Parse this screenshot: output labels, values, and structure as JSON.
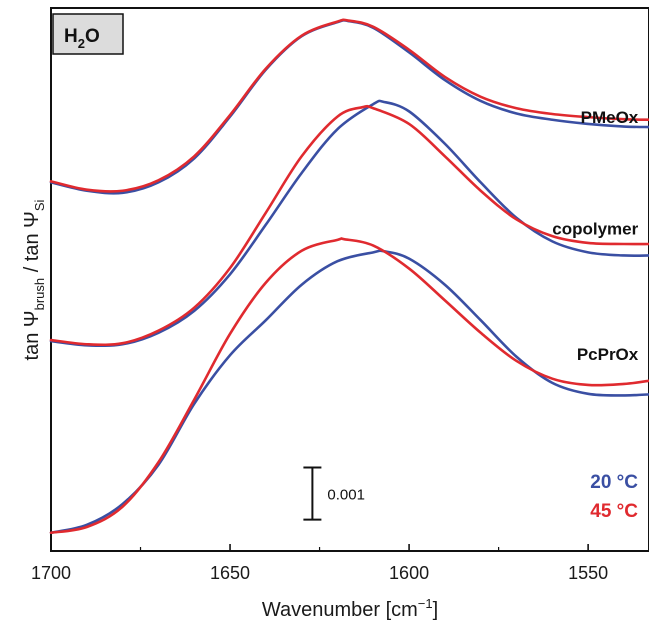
{
  "chart_data": {
    "type": "line",
    "xlabel_main": "Wavenumber [cm",
    "xlabel_sup": "−1",
    "xlabel_end": "]",
    "ylabel_parts": {
      "a": "tan Ψ",
      "a_sub": "brush",
      "b": " / tan Ψ",
      "b_sub": "Si"
    },
    "xlim": [
      1700,
      1533
    ],
    "x_ticks": [
      "1700",
      "1650",
      "1600",
      "1550"
    ],
    "x_tick_values": [
      1700,
      1650,
      1600,
      1550
    ],
    "ylim": [
      -0.0003,
      0.0101
    ],
    "y_axis_ticks": "none",
    "grid": false,
    "badge": {
      "main": "H",
      "sub": "2",
      "end": "O"
    },
    "legend": {
      "placement": "bottom-right",
      "entries": [
        {
          "label": "20 °C",
          "color": "#3a4fa3"
        },
        {
          "label": "45 °C",
          "color": "#e02a2f"
        }
      ]
    },
    "scale_bar": {
      "label": "0.001",
      "value": 0.001,
      "x": 1627
    },
    "curve_labels": [
      {
        "text": "PMeOx",
        "x": 1536,
        "y": 0.0079
      },
      {
        "text": "copolymer",
        "x": 1536,
        "y": 0.00576
      },
      {
        "text": "PcPrOx",
        "x": 1536,
        "y": 0.00336
      }
    ],
    "series": [
      {
        "name": "PMeOx",
        "temperature": "20 °C",
        "color": "#3a4fa3",
        "x": [
          1700,
          1690,
          1680,
          1670,
          1660,
          1650,
          1640,
          1630,
          1620,
          1617,
          1610,
          1600,
          1590,
          1580,
          1570,
          1560,
          1550,
          1540,
          1533
        ],
        "y": [
          0.00676,
          0.0066,
          0.00656,
          0.00676,
          0.00722,
          0.00802,
          0.00892,
          0.00956,
          0.00983,
          0.00985,
          0.00972,
          0.00925,
          0.00872,
          0.00832,
          0.00808,
          0.00796,
          0.00788,
          0.00783,
          0.00782
        ]
      },
      {
        "name": "PMeOx",
        "temperature": "45 °C",
        "color": "#e02a2f",
        "x": [
          1700,
          1690,
          1680,
          1670,
          1660,
          1650,
          1640,
          1630,
          1620,
          1617,
          1610,
          1600,
          1590,
          1580,
          1570,
          1560,
          1550,
          1540,
          1533
        ],
        "y": [
          0.00678,
          0.00662,
          0.0066,
          0.0068,
          0.00726,
          0.00805,
          0.00894,
          0.00957,
          0.00984,
          0.00986,
          0.00974,
          0.0093,
          0.00878,
          0.0084,
          0.00818,
          0.00807,
          0.00801,
          0.00797,
          0.00796
        ]
      },
      {
        "name": "copolymer",
        "temperature": "20 °C",
        "color": "#3a4fa3",
        "x": [
          1700,
          1690,
          1680,
          1670,
          1660,
          1650,
          1640,
          1630,
          1620,
          1610,
          1607,
          1600,
          1590,
          1580,
          1570,
          1560,
          1550,
          1540,
          1533
        ],
        "y": [
          0.00372,
          0.00364,
          0.00366,
          0.00388,
          0.0043,
          0.005,
          0.00595,
          0.00694,
          0.00778,
          0.00826,
          0.0083,
          0.00812,
          0.0075,
          0.00676,
          0.00608,
          0.00563,
          0.00542,
          0.00536,
          0.00536
        ]
      },
      {
        "name": "copolymer",
        "temperature": "45 °C",
        "color": "#e02a2f",
        "x": [
          1700,
          1690,
          1680,
          1670,
          1660,
          1650,
          1640,
          1630,
          1620,
          1613,
          1610,
          1600,
          1590,
          1580,
          1570,
          1560,
          1550,
          1540,
          1533
        ],
        "y": [
          0.00374,
          0.00366,
          0.00368,
          0.00392,
          0.00436,
          0.00512,
          0.00618,
          0.00726,
          0.00802,
          0.0082,
          0.00818,
          0.00788,
          0.00726,
          0.0066,
          0.00605,
          0.00573,
          0.0056,
          0.00558,
          0.00558
        ]
      },
      {
        "name": "PcPrOx",
        "temperature": "20 °C",
        "color": "#3a4fa3",
        "x": [
          1700,
          1690,
          1680,
          1670,
          1660,
          1650,
          1640,
          1630,
          1620,
          1610,
          1607,
          1600,
          1590,
          1580,
          1570,
          1560,
          1550,
          1540,
          1533
        ],
        "y": [
          5e-05,
          0.0002,
          0.0006,
          0.00135,
          0.00252,
          0.00345,
          0.00412,
          0.0048,
          0.00525,
          0.00542,
          0.00544,
          0.0053,
          0.0048,
          0.00412,
          0.00342,
          0.00292,
          0.00271,
          0.00268,
          0.0027
        ]
      },
      {
        "name": "PcPrOx",
        "temperature": "45 °C",
        "color": "#e02a2f",
        "x": [
          1700,
          1690,
          1680,
          1670,
          1660,
          1650,
          1640,
          1630,
          1620,
          1618,
          1610,
          1600,
          1590,
          1580,
          1570,
          1560,
          1550,
          1540,
          1533
        ],
        "y": [
          5e-05,
          0.00016,
          0.00055,
          0.0014,
          0.0026,
          0.00386,
          0.00484,
          0.00545,
          0.00566,
          0.00567,
          0.00555,
          0.00511,
          0.0045,
          0.00388,
          0.00334,
          0.003,
          0.00288,
          0.0029,
          0.00296
        ]
      }
    ]
  }
}
